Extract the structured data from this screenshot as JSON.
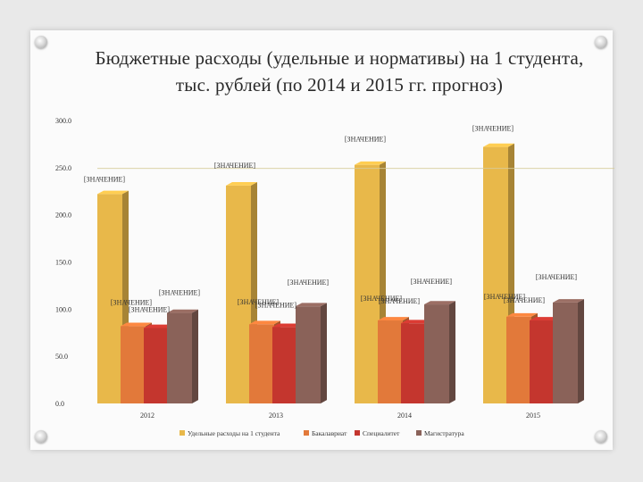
{
  "title": "Бюджетные расходы (удельные и нормативы) на 1 студента, тыс. рублей (по 2014 и 2015 гг. прогноз)",
  "chart_data": {
    "type": "bar",
    "title": "Бюджетные расходы (удельные и нормативы) на 1 студента, тыс. рублей (по 2014 и 2015 гг. прогноз)",
    "categories": [
      "2012",
      "2013",
      "2014",
      "2015"
    ],
    "y_ticks": [
      "300.0",
      "250.0",
      "200.0",
      "150.0",
      "100.0",
      "50.0",
      "0.0"
    ],
    "ylim": [
      0,
      300
    ],
    "grid": false,
    "legend_position": "bottom",
    "data_label_text": "[ЗНАЧЕНИЕ]",
    "series": [
      {
        "name": "Удельные расходы на 1 студента",
        "color": "#e8b84a",
        "values": [
          222,
          231,
          253,
          272
        ]
      },
      {
        "name": "Бакалавриат",
        "color": "#e2793a",
        "values": [
          82,
          84,
          88,
          92
        ]
      },
      {
        "name": "Специалитет",
        "color": "#c4362e",
        "values": [
          80,
          81,
          85,
          88
        ]
      },
      {
        "name": "Магистратура",
        "color": "#8a6259",
        "values": [
          96,
          103,
          105,
          107
        ]
      }
    ]
  }
}
